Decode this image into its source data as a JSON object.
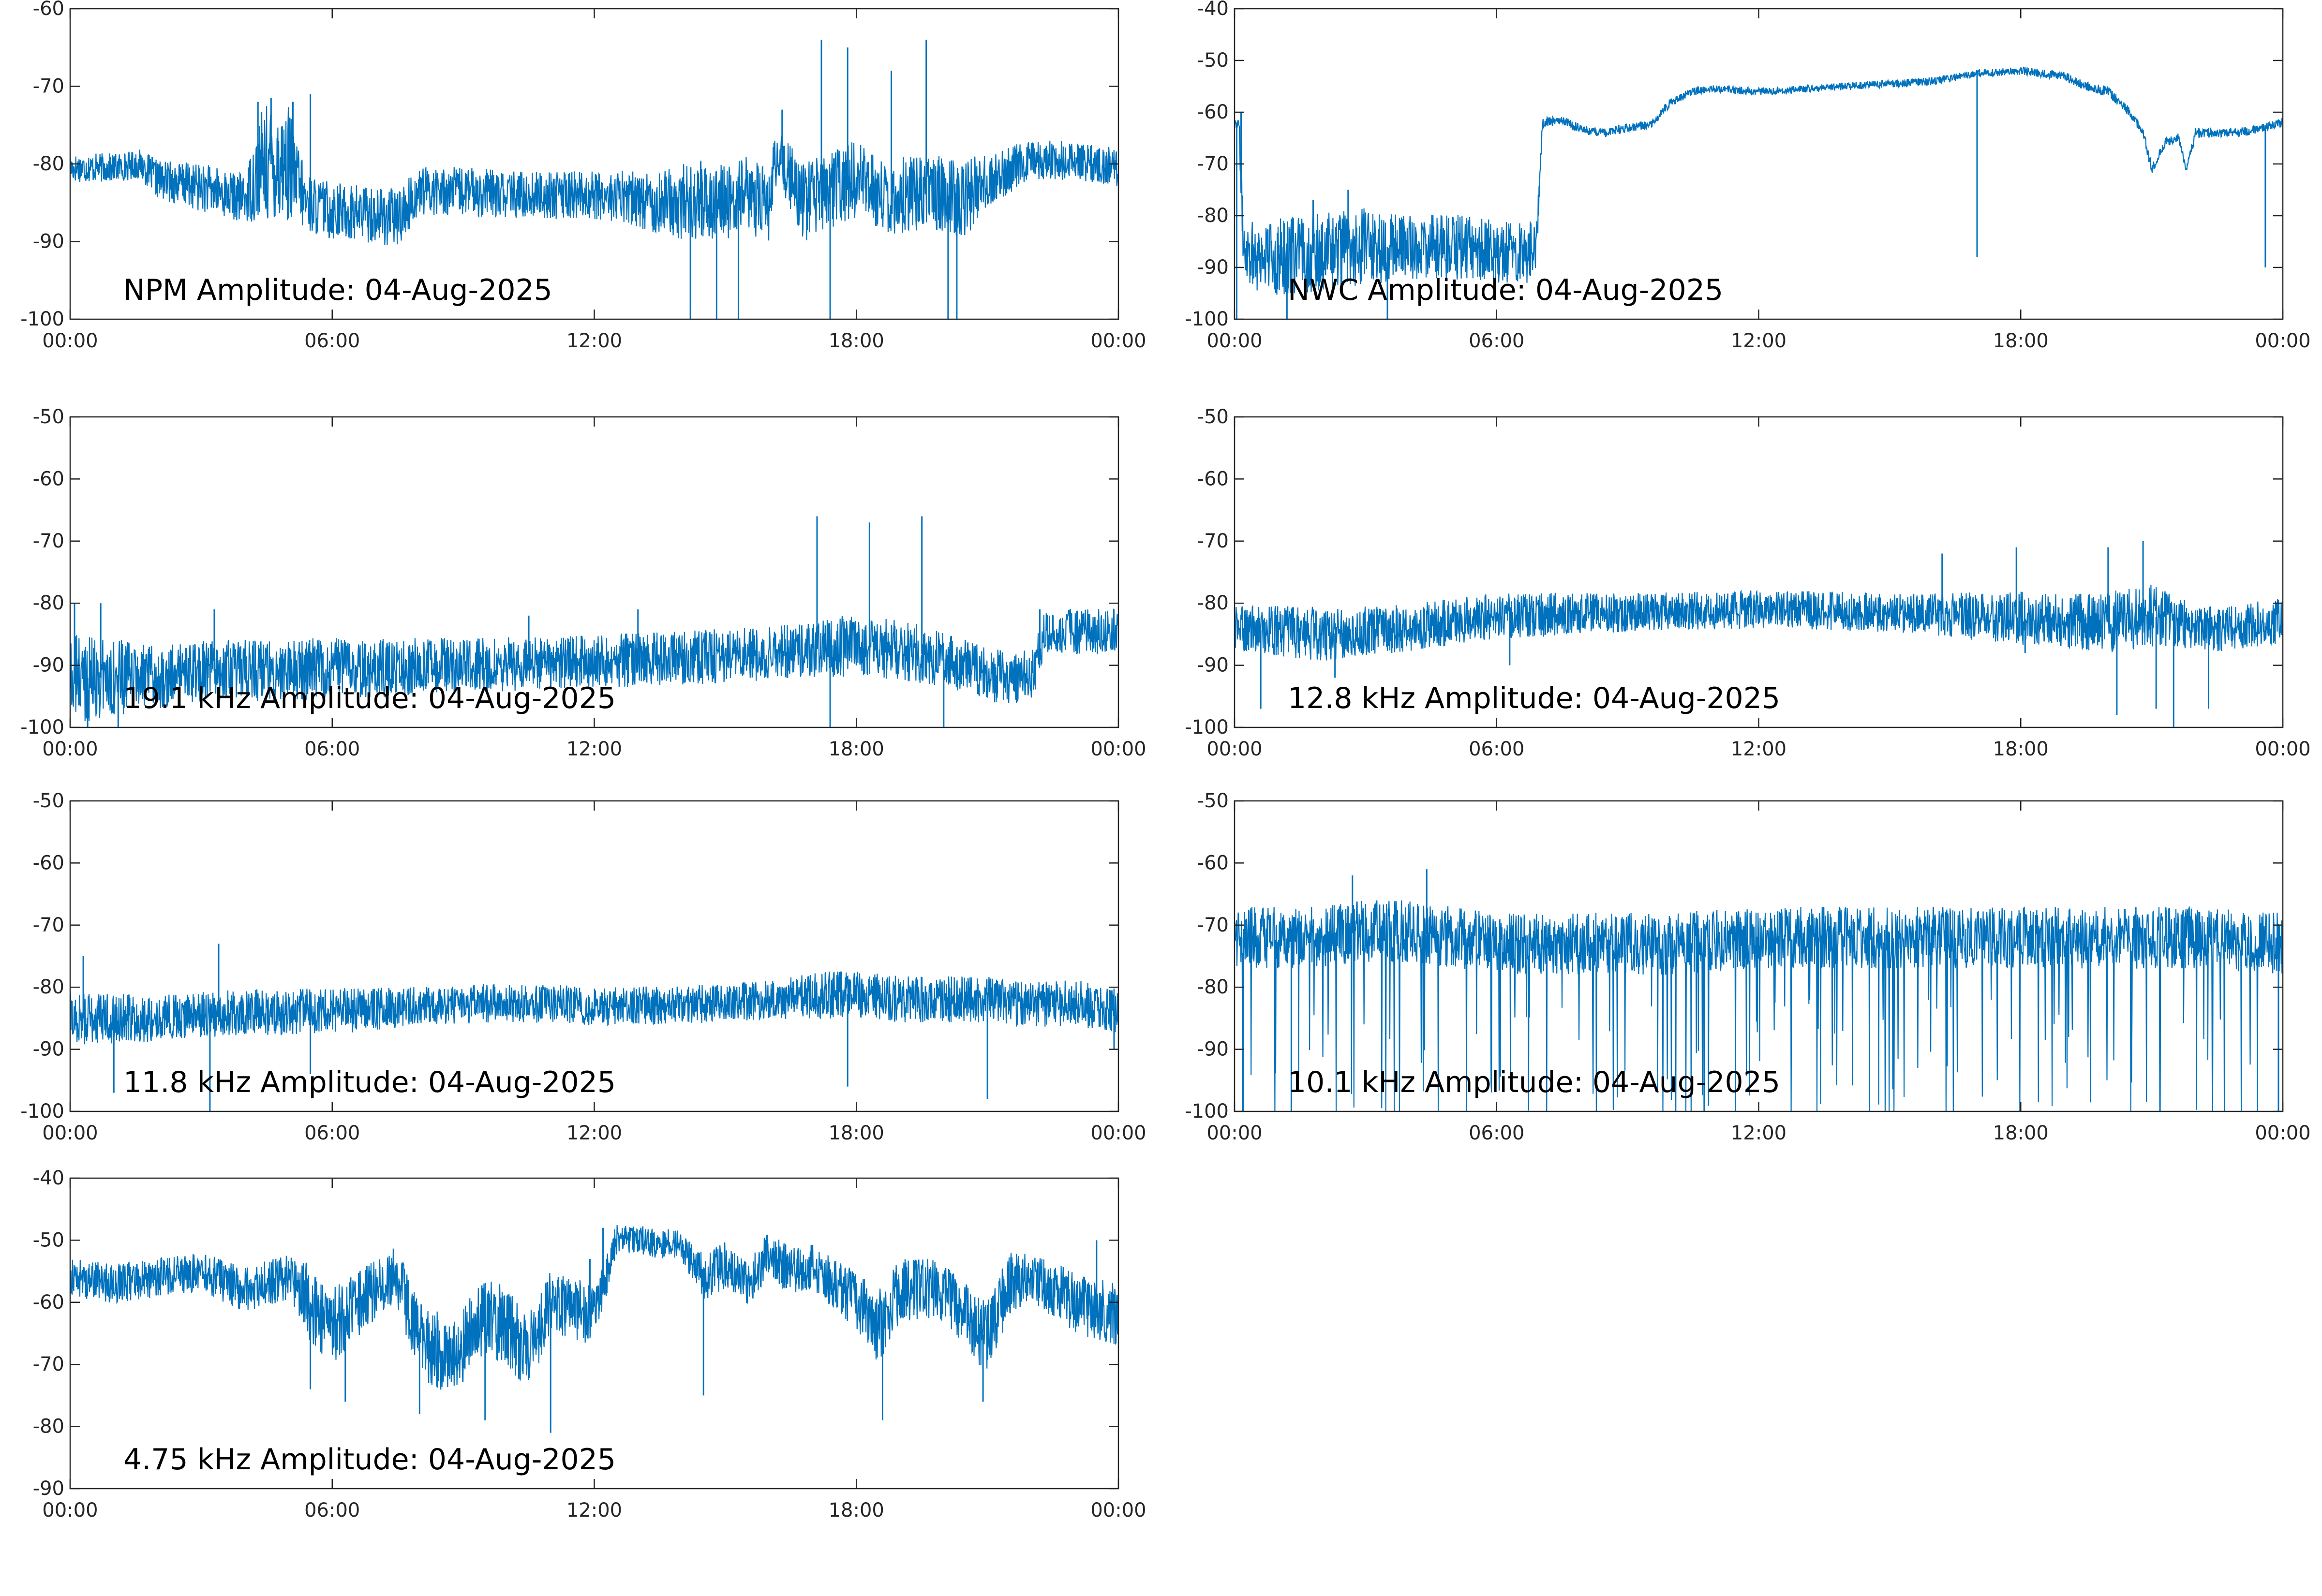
{
  "figure": {
    "background": "#ffffff",
    "line_color": "#0072BD",
    "axis_color": "#262626"
  },
  "chart_data": [
    {
      "type": "line",
      "title": "NPM Amplitude: 04-Aug-2025",
      "xlabel": "",
      "ylabel": "",
      "xlim": [
        0,
        24
      ],
      "ylim": [
        -100,
        -60
      ],
      "yticks": [
        -100,
        -90,
        -80,
        -70,
        -60
      ],
      "xticks": [
        "00:00",
        "06:00",
        "12:00",
        "18:00",
        "00:00"
      ],
      "grid": false,
      "series": [
        {
          "x": [
            0,
            1,
            1.6,
            2,
            3,
            4,
            4.4,
            5,
            5.4,
            6,
            7,
            7.5,
            8,
            9,
            10,
            11,
            12,
            13,
            14,
            14.5,
            15,
            15.5,
            16,
            16.2,
            16.8,
            17.5,
            18,
            18.5,
            19,
            19.5,
            20,
            20.5,
            21,
            22,
            23,
            24
          ],
          "mean": [
            -80.5,
            -80.5,
            -80,
            -82,
            -83,
            -84.5,
            -80,
            -80,
            -85,
            -86,
            -86.5,
            -87,
            -83.5,
            -83.5,
            -84,
            -84,
            -84,
            -84.5,
            -85,
            -84.5,
            -85,
            -84,
            -85,
            -79,
            -85,
            -83,
            -82,
            -84,
            -84,
            -83.5,
            -84,
            -84.5,
            -82,
            -79.5,
            -79.5,
            -80.5
          ],
          "noise": [
            1.5,
            1.5,
            1.5,
            2,
            2.5,
            2.5,
            6,
            6,
            3,
            3,
            3,
            3,
            2.5,
            2.5,
            2.5,
            2.5,
            2.5,
            3,
            4,
            4,
            4,
            4,
            4,
            3,
            4,
            4,
            4,
            4,
            4,
            4,
            4,
            4,
            3,
            2,
            2,
            2
          ],
          "spikes": [
            [
              4.3,
              -72
            ],
            [
              4.6,
              -71.5
            ],
            [
              5.1,
              -72
            ],
            [
              5.5,
              -71
            ],
            [
              14.2,
              -100
            ],
            [
              14.8,
              -100
            ],
            [
              15.3,
              -100
            ],
            [
              16.3,
              -73
            ],
            [
              17.2,
              -64
            ],
            [
              17.4,
              -100
            ],
            [
              17.8,
              -65
            ],
            [
              18.8,
              -68
            ],
            [
              19.6,
              -64
            ],
            [
              20.1,
              -100
            ],
            [
              20.3,
              -100
            ]
          ]
        }
      ]
    },
    {
      "type": "line",
      "title": "NWC Amplitude: 04-Aug-2025",
      "xlabel": "",
      "ylabel": "",
      "xlim": [
        0,
        24
      ],
      "ylim": [
        -100,
        -40
      ],
      "yticks": [
        -100,
        -90,
        -80,
        -70,
        -60,
        -50,
        -40
      ],
      "xticks": [
        "00:00",
        "06:00",
        "12:00",
        "18:00",
        "00:00"
      ],
      "grid": false,
      "series": [
        {
          "x": [
            0,
            0.1,
            0.2,
            0.4,
            1,
            2,
            3,
            4,
            5,
            6,
            6.9,
            7.05,
            7.5,
            8,
            8.5,
            9,
            9.5,
            10,
            10.5,
            11,
            12,
            13,
            14,
            15,
            16,
            17,
            18,
            19,
            19.5,
            20,
            20.5,
            20.8,
            21,
            21.3,
            21.6,
            21.8,
            22,
            22.5,
            23,
            24
          ],
          "mean": [
            -62,
            -62,
            -85,
            -87,
            -88,
            -87,
            -86,
            -86,
            -86,
            -87,
            -87,
            -62,
            -61.5,
            -63.5,
            -64,
            -63,
            -62.5,
            -58,
            -56,
            -55.5,
            -56,
            -55.5,
            -55,
            -54.5,
            -54,
            -52.5,
            -52,
            -53,
            -55,
            -56,
            -60,
            -64,
            -71,
            -66,
            -65,
            -71,
            -64,
            -64,
            -64,
            -62
          ],
          "noise": [
            1,
            1,
            5,
            6,
            6,
            6,
            6,
            5,
            5,
            5,
            5,
            0.8,
            0.7,
            0.7,
            0.7,
            0.7,
            0.7,
            0.7,
            0.6,
            0.6,
            0.6,
            0.6,
            0.6,
            0.6,
            0.6,
            0.6,
            0.6,
            0.7,
            0.7,
            0.8,
            0.8,
            0.8,
            0.8,
            0.8,
            0.8,
            0.8,
            0.8,
            0.7,
            0.7,
            0.7
          ],
          "spikes": [
            [
              0.05,
              -100
            ],
            [
              0.15,
              -60
            ],
            [
              1.2,
              -100
            ],
            [
              1.8,
              -77
            ],
            [
              2.6,
              -75
            ],
            [
              3.5,
              -100
            ],
            [
              17,
              -88
            ],
            [
              17.05,
              -53
            ],
            [
              23.6,
              -90
            ]
          ]
        }
      ]
    },
    {
      "type": "line",
      "title": "19.1 kHz Amplitude: 04-Aug-2025",
      "xlabel": "",
      "ylabel": "",
      "xlim": [
        0,
        24
      ],
      "ylim": [
        -100,
        -50
      ],
      "yticks": [
        -100,
        -90,
        -80,
        -70,
        -60,
        -50
      ],
      "xticks": [
        "00:00",
        "06:00",
        "12:00",
        "18:00",
        "00:00"
      ],
      "grid": false,
      "series": [
        {
          "x": [
            0,
            1,
            2,
            3,
            6,
            9,
            12,
            15,
            16,
            17,
            17.5,
            18,
            19,
            20,
            21,
            21.5,
            22,
            22.3,
            22.5,
            23,
            24
          ],
          "mean": [
            -92,
            -92,
            -92,
            -91,
            -90.5,
            -90,
            -89.5,
            -88.5,
            -88,
            -87.5,
            -87,
            -87,
            -87.5,
            -89,
            -91.5,
            -92,
            -92,
            -85,
            -84.5,
            -84.5,
            -84.5
          ],
          "noise": [
            6,
            5,
            4,
            4,
            4,
            3.5,
            3.5,
            3.5,
            3.5,
            3.5,
            4,
            4,
            4,
            3.5,
            3.5,
            3.5,
            3.5,
            3,
            3,
            3,
            3
          ],
          "spikes": [
            [
              0.1,
              -80
            ],
            [
              0.4,
              -100
            ],
            [
              0.7,
              -80
            ],
            [
              1.1,
              -100
            ],
            [
              3.3,
              -81
            ],
            [
              10.5,
              -82
            ],
            [
              13,
              -81
            ],
            [
              17.1,
              -66
            ],
            [
              17.4,
              -100
            ],
            [
              18.3,
              -67
            ],
            [
              19.5,
              -66
            ],
            [
              20,
              -100
            ],
            [
              22.2,
              -81
            ]
          ]
        }
      ]
    },
    {
      "type": "line",
      "title": "12.8 kHz Amplitude: 04-Aug-2025",
      "xlabel": "",
      "ylabel": "",
      "xlim": [
        0,
        24
      ],
      "ylim": [
        -100,
        -50
      ],
      "yticks": [
        -100,
        -90,
        -80,
        -70,
        -60,
        -50
      ],
      "xticks": [
        "00:00",
        "06:00",
        "12:00",
        "18:00",
        "00:00"
      ],
      "grid": false,
      "series": [
        {
          "x": [
            0,
            2,
            4,
            6,
            9,
            12,
            15,
            17,
            18,
            19,
            20,
            21,
            22,
            22.5,
            24
          ],
          "mean": [
            -84,
            -85,
            -84,
            -82,
            -81.5,
            -81,
            -81.5,
            -82,
            -82.5,
            -83,
            -83,
            -82,
            -84,
            -84,
            -83
          ],
          "noise": [
            3,
            3.5,
            3,
            3,
            2.5,
            2.5,
            2.5,
            3,
            3.5,
            3.5,
            4,
            4,
            3,
            3,
            3
          ],
          "spikes": [
            [
              0.6,
              -97
            ],
            [
              2.3,
              -92
            ],
            [
              6.3,
              -90
            ],
            [
              16.2,
              -72
            ],
            [
              17.9,
              -71
            ],
            [
              18.1,
              -88
            ],
            [
              20,
              -71
            ],
            [
              20.2,
              -98
            ],
            [
              20.8,
              -70
            ],
            [
              21.1,
              -97
            ],
            [
              21.5,
              -100
            ],
            [
              22.3,
              -97
            ]
          ]
        }
      ]
    },
    {
      "type": "line",
      "title": "11.8 kHz Amplitude: 04-Aug-2025",
      "xlabel": "",
      "ylabel": "",
      "xlim": [
        0,
        24
      ],
      "ylim": [
        -100,
        -50
      ],
      "yticks": [
        -100,
        -90,
        -80,
        -70,
        -60,
        -50
      ],
      "xticks": [
        "00:00",
        "06:00",
        "12:00",
        "18:00",
        "00:00"
      ],
      "grid": false,
      "series": [
        {
          "x": [
            0,
            2,
            4,
            6,
            8,
            10,
            12,
            14,
            15,
            16,
            17,
            18,
            19,
            20,
            21,
            22,
            23,
            24
          ],
          "mean": [
            -85,
            -85,
            -84,
            -84,
            -83,
            -82.5,
            -83,
            -83,
            -82.5,
            -82,
            -81.5,
            -81,
            -82,
            -82,
            -82,
            -83,
            -82.5,
            -84
          ],
          "noise": [
            3.5,
            3,
            3,
            3,
            2.5,
            2.5,
            2.5,
            2.5,
            2.5,
            2.5,
            3,
            3,
            3,
            3,
            3,
            3,
            3,
            3
          ],
          "spikes": [
            [
              0.3,
              -75
            ],
            [
              1,
              -97
            ],
            [
              3.2,
              -100
            ],
            [
              3.4,
              -73
            ],
            [
              5.5,
              -94
            ],
            [
              17.8,
              -96
            ],
            [
              21,
              -98
            ],
            [
              23.9,
              -90
            ]
          ]
        }
      ]
    },
    {
      "type": "line",
      "title": "10.1 kHz Amplitude: 04-Aug-2025",
      "xlabel": "",
      "ylabel": "",
      "xlim": [
        0,
        24
      ],
      "ylim": [
        -100,
        -50
      ],
      "yticks": [
        -100,
        -90,
        -80,
        -70,
        -60,
        -50
      ],
      "xticks": [
        "00:00",
        "06:00",
        "12:00",
        "18:00",
        "00:00"
      ],
      "grid": false,
      "series": [
        {
          "x": [
            0,
            1,
            2,
            3,
            4,
            5,
            6,
            8,
            10,
            12,
            14,
            16,
            18,
            20,
            22,
            24
          ],
          "mean": [
            -72,
            -72,
            -72,
            -71,
            -71,
            -72,
            -73,
            -73,
            -73,
            -72,
            -72,
            -72,
            -72,
            -72,
            -72,
            -73
          ],
          "noise": [
            4,
            4,
            4,
            4,
            4,
            4,
            4,
            4,
            4,
            4,
            4,
            4,
            4,
            4,
            4,
            4
          ],
          "spikes": [
            [
              0.2,
              -100
            ],
            [
              1.3,
              -100
            ],
            [
              2.7,
              -62
            ],
            [
              4.4,
              -61
            ],
            [
              23.9,
              -100
            ]
          ]
        }
      ]
    },
    {
      "type": "line",
      "title": "4.75 kHz Amplitude: 04-Aug-2025",
      "xlabel": "",
      "ylabel": "",
      "xlim": [
        0,
        24
      ],
      "ylim": [
        -90,
        -40
      ],
      "yticks": [
        -90,
        -80,
        -70,
        -60,
        -50,
        -40
      ],
      "xticks": [
        "00:00",
        "06:00",
        "12:00",
        "18:00",
        "00:00"
      ],
      "grid": false,
      "series": [
        {
          "x": [
            0,
            1,
            2,
            3,
            4,
            5,
            5.5,
            6,
            7,
            7.5,
            8,
            8.5,
            9,
            9.5,
            10,
            10.5,
            11,
            11.5,
            12,
            12.5,
            13,
            14,
            14.5,
            15,
            15.5,
            16,
            16.5,
            17,
            18,
            18.5,
            19,
            20,
            20.5,
            21,
            21.5,
            22,
            23,
            24
          ],
          "mean": [
            -56,
            -57,
            -56,
            -55,
            -58,
            -56,
            -60,
            -64,
            -58,
            -56,
            -66,
            -68,
            -67,
            -62,
            -64,
            -68,
            -60,
            -61,
            -62,
            -50,
            -50,
            -51,
            -56,
            -54,
            -57,
            -52,
            -55,
            -54,
            -60,
            -64,
            -58,
            -58,
            -62,
            -66,
            -57,
            -56,
            -60,
            -62
          ],
          "noise": [
            2.5,
            2.5,
            2.5,
            2.5,
            3,
            3,
            5,
            5,
            4,
            4,
            5,
            5,
            5,
            5,
            5,
            5,
            4,
            4,
            4,
            2,
            2,
            2,
            3,
            3,
            3,
            3,
            3,
            3,
            4,
            5,
            4,
            4,
            4,
            5,
            4,
            3,
            4,
            4
          ],
          "spikes": [
            [
              5.5,
              -74
            ],
            [
              6.3,
              -76
            ],
            [
              8,
              -78
            ],
            [
              9.5,
              -79
            ],
            [
              11,
              -81
            ],
            [
              11.9,
              -53
            ],
            [
              12.2,
              -48
            ],
            [
              14.5,
              -75
            ],
            [
              18.6,
              -79
            ],
            [
              20.9,
              -76
            ],
            [
              23.5,
              -50
            ]
          ]
        }
      ]
    }
  ]
}
